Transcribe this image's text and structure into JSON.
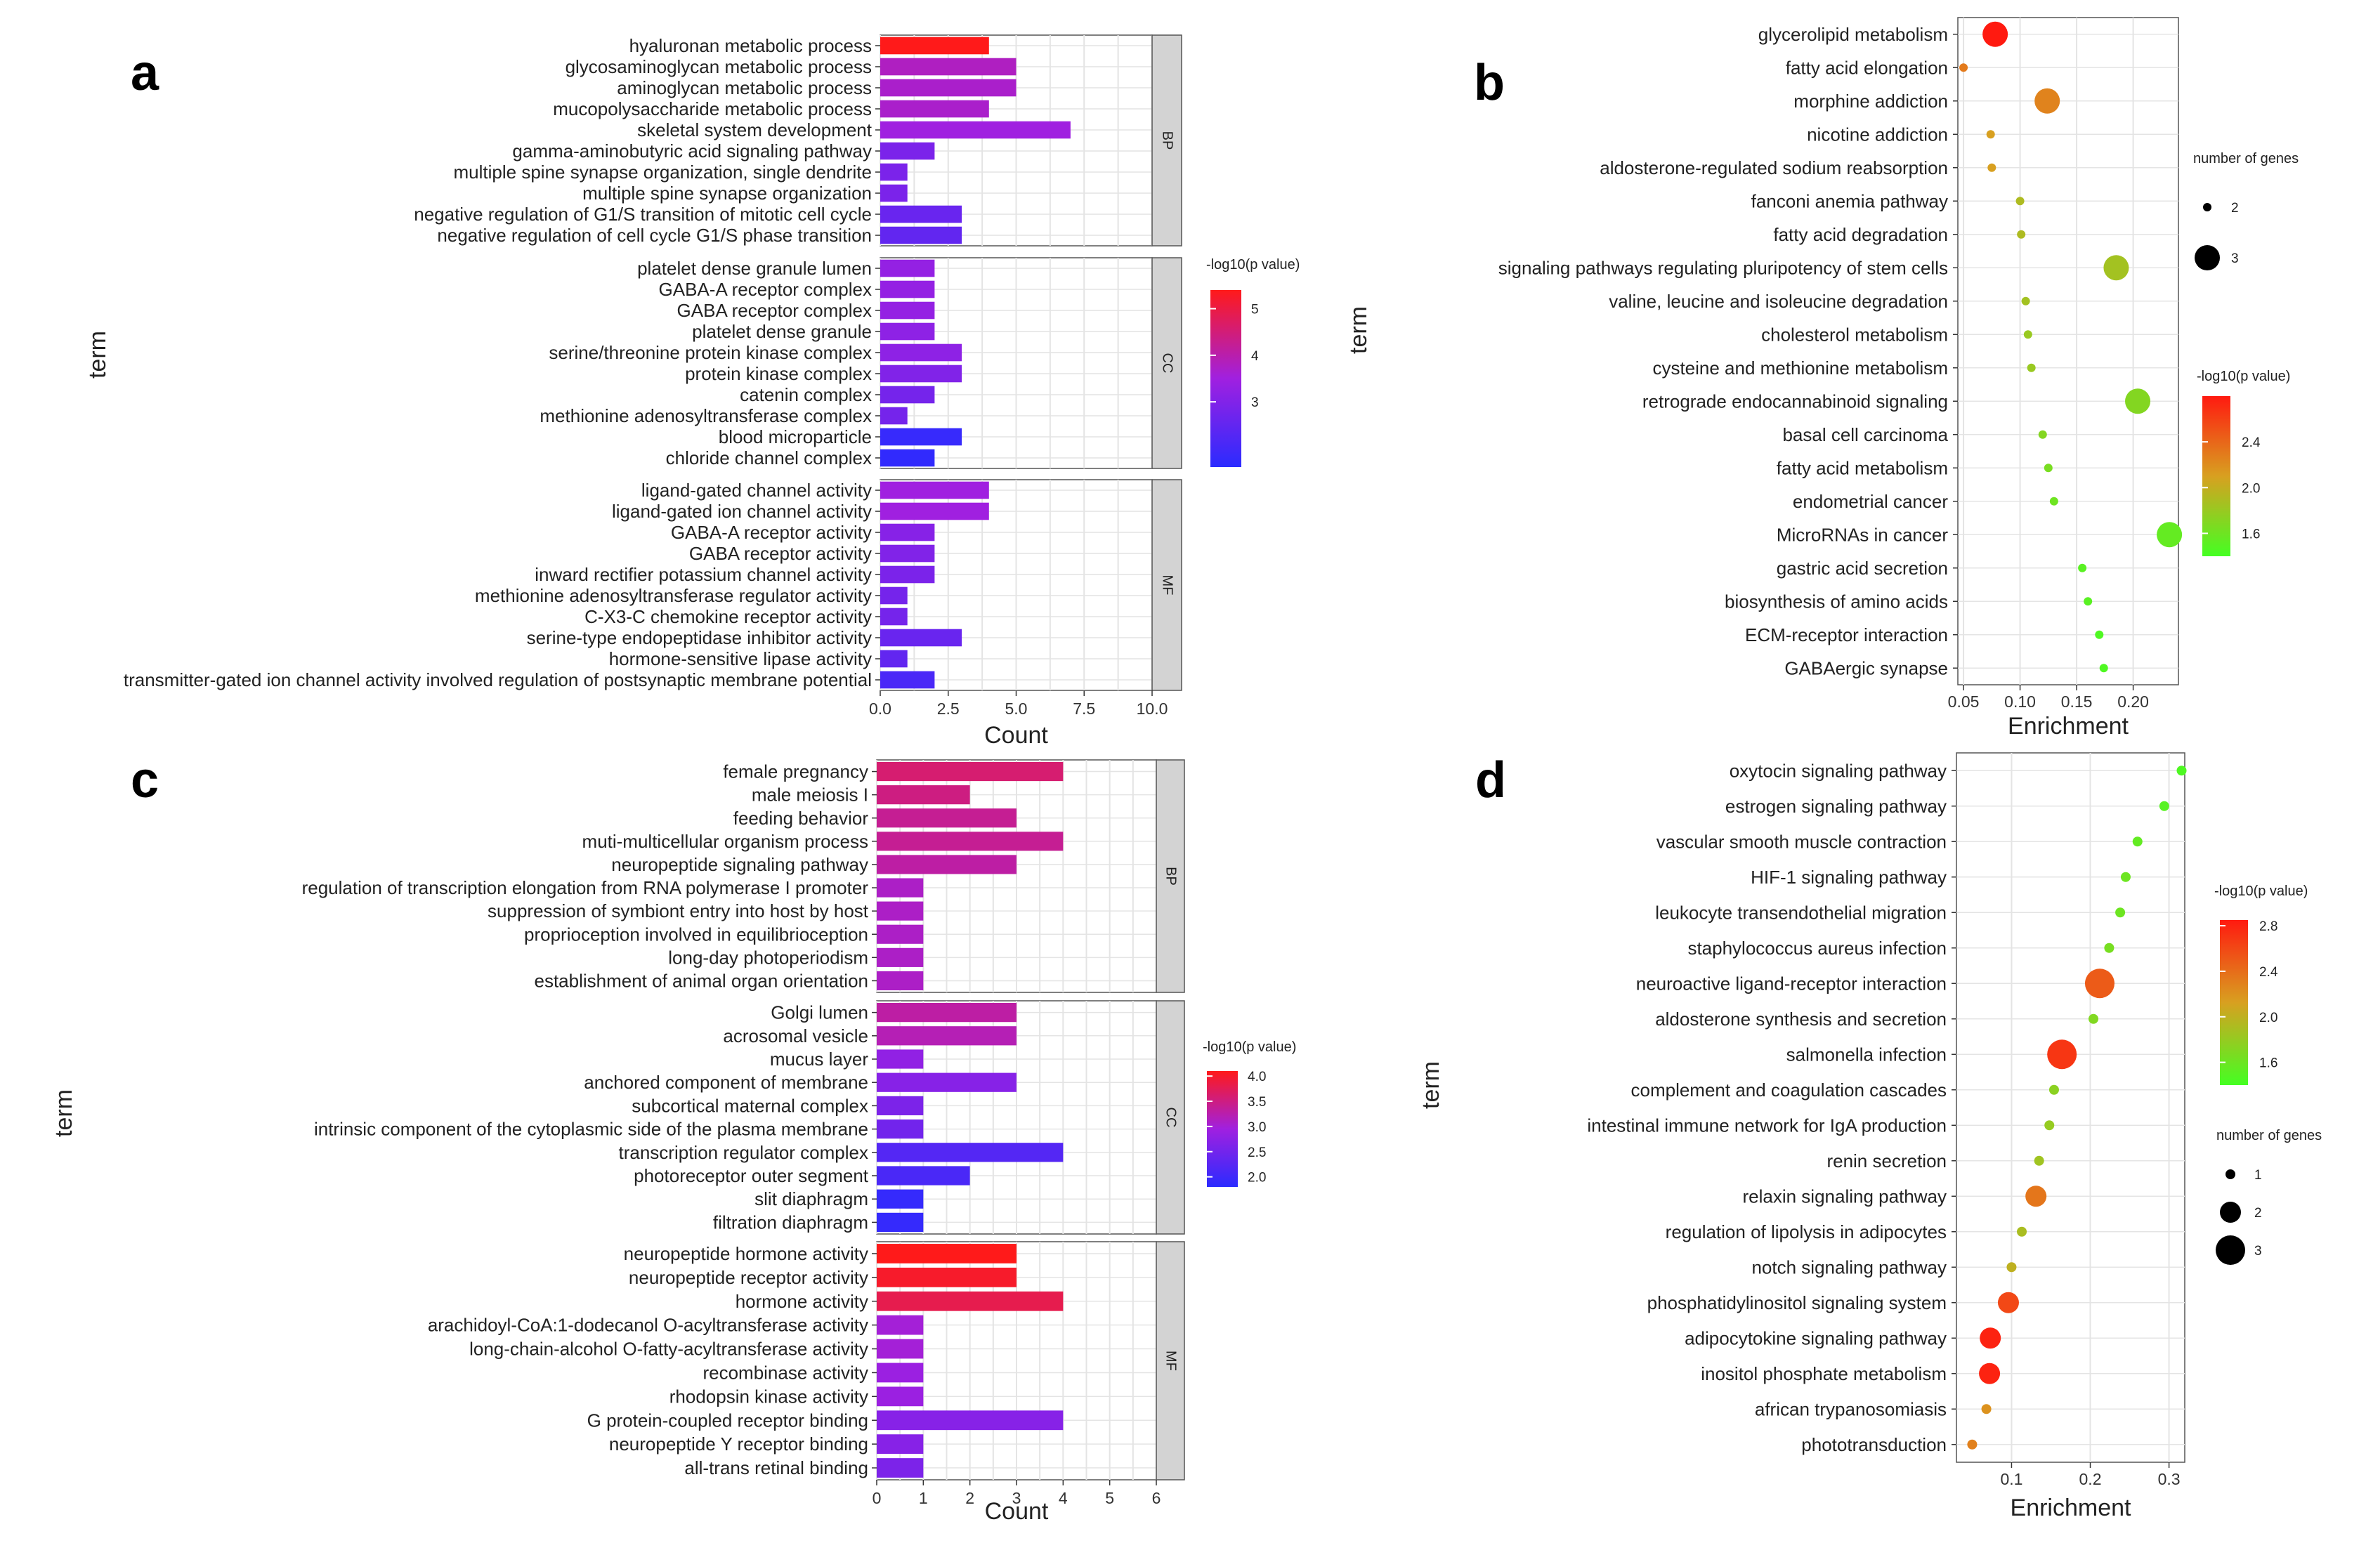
{
  "colors": {
    "bar_low": "#2b2bff",
    "bar_mid": "#a020e0",
    "bar_high": "#ff1a1a",
    "dot_low": "#44ff22",
    "dot_mid": "#d8a020",
    "dot_high": "#ff1a10",
    "grid": "#e4e4e4",
    "strip": "#d3d3d3"
  },
  "chart_data": [
    {
      "panel": "a",
      "type": "bar",
      "orientation": "horizontal",
      "xlabel": "Count",
      "ylabel": "term",
      "xlim": [
        0,
        10
      ],
      "xticks": [
        "0.0",
        "2.5",
        "5.0",
        "7.5",
        "10.0"
      ],
      "legend": {
        "title": "-log10(p value)",
        "ticks": [
          "5",
          "4",
          "3"
        ],
        "range": [
          1.6,
          5.4
        ],
        "placement": "right"
      },
      "facets": [
        {
          "label": "BP",
          "terms": [
            {
              "term": "hyaluronan metabolic process",
              "count": 4,
              "p": 5.4
            },
            {
              "term": "glycosaminoglycan metabolic process",
              "count": 5,
              "p": 3.8
            },
            {
              "term": "aminoglycan metabolic process",
              "count": 5,
              "p": 3.7
            },
            {
              "term": "mucopolysaccharide metabolic process",
              "count": 4,
              "p": 3.7
            },
            {
              "term": "skeletal system development",
              "count": 7,
              "p": 3.5
            },
            {
              "term": "gamma-aminobutyric acid signaling pathway",
              "count": 2,
              "p": 2.9
            },
            {
              "term": "multiple spine synapse organization, single dendrite",
              "count": 1,
              "p": 2.9
            },
            {
              "term": "multiple spine synapse organization",
              "count": 1,
              "p": 2.9
            },
            {
              "term": "negative regulation of G1/S transition of mitotic cell cycle",
              "count": 3,
              "p": 2.6
            },
            {
              "term": "negative regulation of cell cycle G1/S phase transition",
              "count": 3,
              "p": 2.5
            }
          ]
        },
        {
          "label": "CC",
          "terms": [
            {
              "term": "platelet dense granule lumen",
              "count": 2,
              "p": 3.3
            },
            {
              "term": "GABA-A receptor complex",
              "count": 2,
              "p": 3.3
            },
            {
              "term": "GABA receptor complex",
              "count": 2,
              "p": 3.3
            },
            {
              "term": "platelet dense granule",
              "count": 2,
              "p": 3.2
            },
            {
              "term": "serine/threonine protein kinase complex",
              "count": 3,
              "p": 3.2
            },
            {
              "term": "protein kinase complex",
              "count": 3,
              "p": 3.0
            },
            {
              "term": "catenin complex",
              "count": 2,
              "p": 2.8
            },
            {
              "term": "methionine adenosyltransferase complex",
              "count": 1,
              "p": 2.8
            },
            {
              "term": "blood microparticle",
              "count": 3,
              "p": 1.8
            },
            {
              "term": "chloride channel complex",
              "count": 2,
              "p": 1.7
            }
          ]
        },
        {
          "label": "MF",
          "terms": [
            {
              "term": "ligand-gated channel activity",
              "count": 4,
              "p": 3.5
            },
            {
              "term": "ligand-gated ion channel activity",
              "count": 4,
              "p": 3.5
            },
            {
              "term": "GABA-A receptor activity",
              "count": 2,
              "p": 3.1
            },
            {
              "term": "GABA receptor activity",
              "count": 2,
              "p": 3.0
            },
            {
              "term": "inward rectifier potassium channel activity",
              "count": 2,
              "p": 2.9
            },
            {
              "term": "methionine adenosyltransferase regulator activity",
              "count": 1,
              "p": 2.8
            },
            {
              "term": "C-X3-C chemokine receptor activity",
              "count": 1,
              "p": 2.8
            },
            {
              "term": "serine-type endopeptidase inhibitor activity",
              "count": 3,
              "p": 2.6
            },
            {
              "term": "hormone-sensitive lipase activity",
              "count": 1,
              "p": 2.5
            },
            {
              "term": "transmitter-gated ion channel activity involved regulation of postsynaptic membrane potential",
              "count": 2,
              "p": 2.1
            }
          ]
        }
      ]
    },
    {
      "panel": "b",
      "type": "scatter",
      "xlabel": "Enrichment",
      "ylabel": "term",
      "xlim": [
        0.045,
        0.24
      ],
      "xticks": [
        "0.05",
        "0.10",
        "0.15",
        "0.20"
      ],
      "xtick_values": [
        0.05,
        0.1,
        0.15,
        0.2
      ],
      "size_legend": {
        "title": "number of genes",
        "ticks": [
          "2",
          "3"
        ]
      },
      "color_legend": {
        "title": "-log10(p value)",
        "ticks": [
          "2.4",
          "2.0",
          "1.6"
        ],
        "range": [
          1.4,
          2.8
        ]
      },
      "points": [
        {
          "term": "glycerolipid metabolism",
          "x": 0.078,
          "genes": 3,
          "p": 2.8
        },
        {
          "term": "fatty acid elongation",
          "x": 0.05,
          "genes": 2,
          "p": 2.3
        },
        {
          "term": "morphine addiction",
          "x": 0.124,
          "genes": 3,
          "p": 2.25
        },
        {
          "term": "nicotine addiction",
          "x": 0.074,
          "genes": 2,
          "p": 2.1
        },
        {
          "term": "aldosterone-regulated sodium reabsorption",
          "x": 0.075,
          "genes": 2,
          "p": 2.1
        },
        {
          "term": "fanconi anemia pathway",
          "x": 0.1,
          "genes": 2,
          "p": 1.9
        },
        {
          "term": "fatty acid degradation",
          "x": 0.101,
          "genes": 2,
          "p": 1.9
        },
        {
          "term": "signaling pathways regulating pluripotency of stem cells",
          "x": 0.185,
          "genes": 3,
          "p": 1.85
        },
        {
          "term": "valine, leucine and isoleucine degradation",
          "x": 0.105,
          "genes": 2,
          "p": 1.85
        },
        {
          "term": "cholesterol metabolism",
          "x": 0.107,
          "genes": 2,
          "p": 1.8
        },
        {
          "term": "cysteine and methionine metabolism",
          "x": 0.11,
          "genes": 2,
          "p": 1.8
        },
        {
          "term": "retrograde endocannabinoid signaling",
          "x": 0.204,
          "genes": 3,
          "p": 1.7
        },
        {
          "term": "basal cell carcinoma",
          "x": 0.12,
          "genes": 2,
          "p": 1.7
        },
        {
          "term": "fatty acid metabolism",
          "x": 0.125,
          "genes": 2,
          "p": 1.65
        },
        {
          "term": "endometrial cancer",
          "x": 0.13,
          "genes": 2,
          "p": 1.6
        },
        {
          "term": "MicroRNAs in cancer",
          "x": 0.232,
          "genes": 3,
          "p": 1.55
        },
        {
          "term": "gastric acid secretion",
          "x": 0.155,
          "genes": 2,
          "p": 1.5
        },
        {
          "term": "biosynthesis of amino acids",
          "x": 0.16,
          "genes": 2,
          "p": 1.5
        },
        {
          "term": "ECM-receptor interaction",
          "x": 0.17,
          "genes": 2,
          "p": 1.45
        },
        {
          "term": "GABAergic synapse",
          "x": 0.174,
          "genes": 2,
          "p": 1.45
        }
      ]
    },
    {
      "panel": "c",
      "type": "bar",
      "orientation": "horizontal",
      "xlabel": "Count",
      "ylabel": "term",
      "xlim": [
        0,
        6
      ],
      "xticks": [
        "0",
        "1",
        "2",
        "3",
        "4",
        "5",
        "6"
      ],
      "legend": {
        "title": "-log10(p value)",
        "ticks": [
          "4.0",
          "3.5",
          "3.0",
          "2.5",
          "2.0"
        ],
        "range": [
          1.8,
          4.1
        ],
        "placement": "right"
      },
      "facets": [
        {
          "label": "BP",
          "terms": [
            {
              "term": "female pregnancy",
              "count": 4,
              "p": 3.6
            },
            {
              "term": "male meiosis I",
              "count": 2,
              "p": 3.5
            },
            {
              "term": "feeding behavior",
              "count": 3,
              "p": 3.4
            },
            {
              "term": "muti-multicellular organism process",
              "count": 4,
              "p": 3.4
            },
            {
              "term": "neuropeptide signaling pathway",
              "count": 3,
              "p": 3.3
            },
            {
              "term": "regulation of transcription elongation from RNA polymerase I promoter",
              "count": 1,
              "p": 3.1
            },
            {
              "term": "suppression of symbiont entry into host by host",
              "count": 1,
              "p": 3.1
            },
            {
              "term": "proprioception involved in equilibrioception",
              "count": 1,
              "p": 3.1
            },
            {
              "term": "long-day photoperiodism",
              "count": 1,
              "p": 3.1
            },
            {
              "term": "establishment of animal organ orientation",
              "count": 1,
              "p": 3.1
            }
          ]
        },
        {
          "label": "CC",
          "terms": [
            {
              "term": "Golgi lumen",
              "count": 3,
              "p": 3.3
            },
            {
              "term": "acrosomal vesicle",
              "count": 3,
              "p": 3.2
            },
            {
              "term": "mucus layer",
              "count": 1,
              "p": 2.8
            },
            {
              "term": "anchored component of membrane",
              "count": 3,
              "p": 2.7
            },
            {
              "term": "subcortical maternal complex",
              "count": 1,
              "p": 2.6
            },
            {
              "term": "intrinsic component of the cytoplasmic side of the plasma membrane",
              "count": 1,
              "p": 2.5
            },
            {
              "term": "transcription regulator complex",
              "count": 4,
              "p": 2.2
            },
            {
              "term": "photoreceptor outer segment",
              "count": 2,
              "p": 2.1
            },
            {
              "term": "slit diaphragm",
              "count": 1,
              "p": 1.9
            },
            {
              "term": "filtration diaphragm",
              "count": 1,
              "p": 1.9
            }
          ]
        },
        {
          "label": "MF",
          "terms": [
            {
              "term": "neuropeptide hormone activity",
              "count": 3,
              "p": 4.1
            },
            {
              "term": "neuropeptide receptor activity",
              "count": 3,
              "p": 4.0
            },
            {
              "term": "hormone activity",
              "count": 4,
              "p": 3.8
            },
            {
              "term": "arachidoyl-CoA:1-dodecanol O-acyltransferase activity",
              "count": 1,
              "p": 3.0
            },
            {
              "term": "long-chain-alcohol O-fatty-acyltransferase activity",
              "count": 1,
              "p": 3.0
            },
            {
              "term": "recombinase activity",
              "count": 1,
              "p": 2.9
            },
            {
              "term": "rhodopsin kinase activity",
              "count": 1,
              "p": 2.9
            },
            {
              "term": "G protein-coupled receptor binding",
              "count": 4,
              "p": 2.7
            },
            {
              "term": "neuropeptide Y receptor binding",
              "count": 1,
              "p": 2.7
            },
            {
              "term": "all-trans retinal binding",
              "count": 1,
              "p": 2.6
            }
          ]
        }
      ]
    },
    {
      "panel": "d",
      "type": "scatter",
      "xlabel": "Enrichment",
      "ylabel": "term",
      "xlim": [
        0.03,
        0.32
      ],
      "xticks": [
        "0.1",
        "0.2",
        "0.3"
      ],
      "xtick_values": [
        0.1,
        0.2,
        0.3
      ],
      "size_legend": {
        "title": "number of genes",
        "ticks": [
          "1",
          "2",
          "3"
        ]
      },
      "color_legend": {
        "title": "-log10(p value)",
        "ticks": [
          "2.8",
          "2.4",
          "2.0",
          "1.6"
        ],
        "range": [
          1.4,
          2.85
        ]
      },
      "points": [
        {
          "term": "oxytocin signaling pathway",
          "x": 0.316,
          "genes": 1,
          "p": 1.45
        },
        {
          "term": "estrogen signaling pathway",
          "x": 0.294,
          "genes": 1,
          "p": 1.5
        },
        {
          "term": "vascular smooth muscle contraction",
          "x": 0.26,
          "genes": 1,
          "p": 1.55
        },
        {
          "term": "HIF-1 signaling pathway",
          "x": 0.245,
          "genes": 1,
          "p": 1.6
        },
        {
          "term": "leukocyte transendothelial migration",
          "x": 0.238,
          "genes": 1,
          "p": 1.6
        },
        {
          "term": "staphylococcus aureus infection",
          "x": 0.224,
          "genes": 1,
          "p": 1.65
        },
        {
          "term": "neuroactive ligand-receptor interaction",
          "x": 0.212,
          "genes": 3,
          "p": 2.5
        },
        {
          "term": "aldosterone synthesis and secretion",
          "x": 0.204,
          "genes": 1,
          "p": 1.7
        },
        {
          "term": "salmonella infection",
          "x": 0.164,
          "genes": 3,
          "p": 2.7
        },
        {
          "term": "complement and coagulation cascades",
          "x": 0.154,
          "genes": 1,
          "p": 1.75
        },
        {
          "term": "intestinal immune network for IgA production",
          "x": 0.148,
          "genes": 1,
          "p": 1.8
        },
        {
          "term": "renin secretion",
          "x": 0.135,
          "genes": 1,
          "p": 1.85
        },
        {
          "term": "relaxin signaling pathway",
          "x": 0.131,
          "genes": 2,
          "p": 2.35
        },
        {
          "term": "regulation of lipolysis in adipocytes",
          "x": 0.113,
          "genes": 1,
          "p": 1.9
        },
        {
          "term": "notch signaling pathway",
          "x": 0.1,
          "genes": 1,
          "p": 2.0
        },
        {
          "term": "phosphatidylinositol signaling system",
          "x": 0.096,
          "genes": 2,
          "p": 2.6
        },
        {
          "term": "adipocytokine signaling pathway",
          "x": 0.073,
          "genes": 2,
          "p": 2.8
        },
        {
          "term": "inositol phosphate metabolism",
          "x": 0.072,
          "genes": 2,
          "p": 2.8
        },
        {
          "term": "african trypanosomiasis",
          "x": 0.068,
          "genes": 1,
          "p": 2.2
        },
        {
          "term": "phototransduction",
          "x": 0.05,
          "genes": 1,
          "p": 2.3
        }
      ]
    }
  ]
}
